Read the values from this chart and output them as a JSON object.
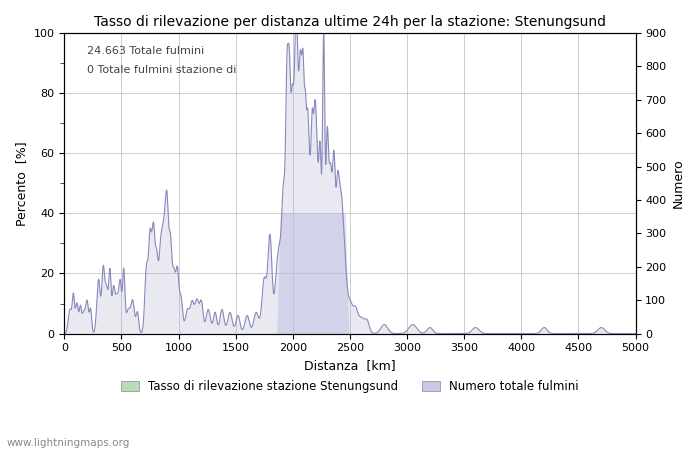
{
  "title": "Tasso di rilevazione per distanza ultime 24h per la stazione: Stenungsund",
  "xlabel": "Distanza  [km]",
  "ylabel_left": "Percento  [%]",
  "ylabel_right": "Numero",
  "annotation_line1": "24.663 Totale fulmini",
  "annotation_line2": "0 Totale fulmini stazione di",
  "legend_label1": "Tasso di rilevazione stazione Stenungsund",
  "legend_label2": "Numero totale fulmini",
  "watermark": "www.lightningmaps.org",
  "xlim": [
    0,
    5000
  ],
  "ylim_left": [
    0,
    100
  ],
  "ylim_right": [
    0,
    900
  ],
  "xticks": [
    0,
    500,
    1000,
    1500,
    2000,
    2500,
    3000,
    3500,
    4000,
    4500,
    5000
  ],
  "yticks_left": [
    0,
    20,
    40,
    60,
    80,
    100
  ],
  "yticks_right": [
    0,
    100,
    200,
    300,
    400,
    500,
    600,
    700,
    800,
    900
  ],
  "fill_color_blue": "#c8c8e8",
  "fill_color_blue_dark": "#aaaacc",
  "fill_color_green": "#b8ddb8",
  "line_color": "#8888bb",
  "background_color": "#ffffff",
  "grid_color": "#bbbbbb"
}
